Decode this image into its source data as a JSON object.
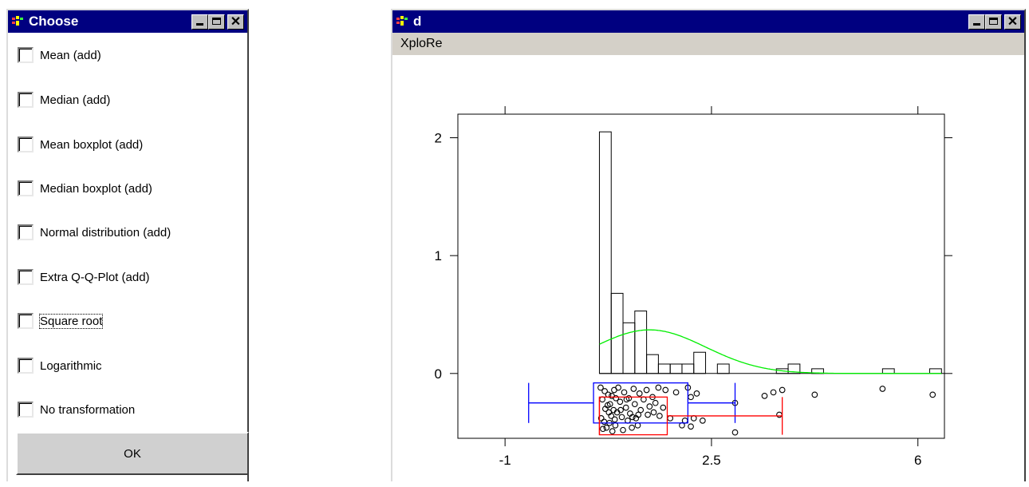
{
  "choose_window": {
    "title": "Choose",
    "options": [
      {
        "label": "Mean (add)",
        "checked": false
      },
      {
        "label": "Median (add)",
        "checked": false
      },
      {
        "label": "Mean boxplot (add)",
        "checked": false
      },
      {
        "label": "Median boxplot (add)",
        "checked": false
      },
      {
        "label": "Normal distribution (add)",
        "checked": false
      },
      {
        "label": "Extra Q-Q-Plot (add)",
        "checked": false
      },
      {
        "label": "Square root",
        "checked": false
      },
      {
        "label": "Logarithmic",
        "checked": false
      },
      {
        "label": "No transformation",
        "checked": false
      }
    ],
    "ok_label": "OK"
  },
  "plot_window": {
    "title": "d",
    "menu": [
      "XploRe"
    ]
  },
  "colors": {
    "titlebar": "#000080",
    "mean_boxplot": "#0000ff",
    "median_boxplot": "#ff0000",
    "density_curve": "#00ee00"
  },
  "chart_data": {
    "type": "bar",
    "title": "",
    "xlabel": "",
    "ylabel": "",
    "x_ticks": [
      "-1",
      "2.5",
      "6"
    ],
    "y_ticks": [
      "0",
      "1",
      "2"
    ],
    "xlim": [
      -1.8,
      6.45
    ],
    "ylim": [
      -0.55,
      2.2
    ],
    "histogram": {
      "bin_width": 0.2,
      "bins": [
        {
          "x0": 0.6,
          "height": 2.05
        },
        {
          "x0": 0.8,
          "height": 0.68
        },
        {
          "x0": 1.0,
          "height": 0.43
        },
        {
          "x0": 1.2,
          "height": 0.53
        },
        {
          "x0": 1.4,
          "height": 0.16
        },
        {
          "x0": 1.6,
          "height": 0.08
        },
        {
          "x0": 1.8,
          "height": 0.08
        },
        {
          "x0": 2.0,
          "height": 0.08
        },
        {
          "x0": 2.2,
          "height": 0.18
        },
        {
          "x0": 2.4,
          "height": 0.0
        },
        {
          "x0": 2.6,
          "height": 0.08
        },
        {
          "x0": 2.8,
          "height": 0.0
        },
        {
          "x0": 3.0,
          "height": 0.0
        },
        {
          "x0": 3.2,
          "height": 0.0
        },
        {
          "x0": 3.4,
          "height": 0.0
        },
        {
          "x0": 3.6,
          "height": 0.04
        },
        {
          "x0": 3.8,
          "height": 0.08
        },
        {
          "x0": 4.0,
          "height": 0.0
        },
        {
          "x0": 4.2,
          "height": 0.04
        },
        {
          "x0": 5.4,
          "height": 0.04
        },
        {
          "x0": 6.2,
          "height": 0.04
        }
      ]
    },
    "normal_density": {
      "mean": 1.45,
      "sd": 0.95,
      "peak": 0.37,
      "x_start": 0.6,
      "x_end": 6.4
    },
    "mean_boxplot": {
      "whisker_low": -0.6,
      "q1": 0.5,
      "q3": 2.1,
      "whisker_high": 2.9,
      "y_center": -0.25,
      "y_half": 0.17
    },
    "median_boxplot": {
      "whisker_low": 0.6,
      "q1": 0.6,
      "q3": 1.75,
      "whisker_high": 3.7,
      "y_center": -0.36,
      "y_half": 0.16
    },
    "points": [
      [
        0.62,
        -0.12
      ],
      [
        0.65,
        -0.22
      ],
      [
        0.7,
        -0.3
      ],
      [
        0.68,
        -0.41
      ],
      [
        0.72,
        -0.46
      ],
      [
        0.75,
        -0.18
      ],
      [
        0.78,
        -0.26
      ],
      [
        0.8,
        -0.36
      ],
      [
        0.82,
        -0.49
      ],
      [
        0.85,
        -0.14
      ],
      [
        0.88,
        -0.21
      ],
      [
        0.9,
        -0.33
      ],
      [
        0.63,
        -0.38
      ],
      [
        0.66,
        -0.47
      ],
      [
        0.69,
        -0.15
      ],
      [
        0.74,
        -0.27
      ],
      [
        0.77,
        -0.42
      ],
      [
        0.81,
        -0.19
      ],
      [
        0.84,
        -0.31
      ],
      [
        0.87,
        -0.44
      ],
      [
        0.92,
        -0.12
      ],
      [
        0.95,
        -0.24
      ],
      [
        0.98,
        -0.37
      ],
      [
        1.0,
        -0.48
      ],
      [
        1.02,
        -0.16
      ],
      [
        1.05,
        -0.29
      ],
      [
        1.08,
        -0.4
      ],
      [
        1.1,
        -0.21
      ],
      [
        1.12,
        -0.34
      ],
      [
        1.15,
        -0.46
      ],
      [
        1.18,
        -0.13
      ],
      [
        1.2,
        -0.26
      ],
      [
        1.22,
        -0.38
      ],
      [
        1.25,
        -0.44
      ],
      [
        1.28,
        -0.17
      ],
      [
        1.3,
        -0.31
      ],
      [
        1.35,
        -0.22
      ],
      [
        1.4,
        -0.14
      ],
      [
        1.42,
        -0.35
      ],
      [
        1.45,
        -0.28
      ],
      [
        1.5,
        -0.2
      ],
      [
        1.52,
        -0.33
      ],
      [
        1.55,
        -0.25
      ],
      [
        1.6,
        -0.12
      ],
      [
        1.62,
        -0.36
      ],
      [
        1.68,
        -0.29
      ],
      [
        1.72,
        -0.14
      ],
      [
        1.8,
        -0.38
      ],
      [
        1.9,
        -0.16
      ],
      [
        2.0,
        -0.44
      ],
      [
        2.05,
        -0.4
      ],
      [
        2.1,
        -0.12
      ],
      [
        2.15,
        -0.2
      ],
      [
        2.15,
        -0.45
      ],
      [
        2.2,
        -0.38
      ],
      [
        2.25,
        -0.17
      ],
      [
        2.35,
        -0.4
      ],
      [
        2.9,
        -0.25
      ],
      [
        2.9,
        -0.5
      ],
      [
        3.4,
        -0.19
      ],
      [
        3.55,
        -0.16
      ],
      [
        3.7,
        -0.14
      ],
      [
        3.65,
        -0.35
      ],
      [
        4.25,
        -0.18
      ],
      [
        5.4,
        -0.13
      ],
      [
        6.25,
        -0.18
      ],
      [
        0.76,
        -0.33
      ],
      [
        0.86,
        -0.39
      ],
      [
        0.96,
        -0.31
      ],
      [
        1.06,
        -0.22
      ],
      [
        1.16,
        -0.37
      ],
      [
        1.26,
        -0.35
      ]
    ]
  }
}
